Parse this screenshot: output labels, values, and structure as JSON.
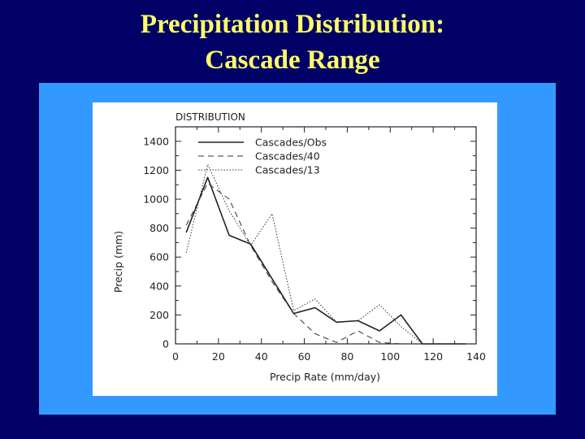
{
  "slide": {
    "title_line1": "Precipitation Distribution:",
    "title_line2": "Cascade Range"
  },
  "colors": {
    "background": "#000066",
    "title": "#ffff66",
    "panel": "#3399ff",
    "card": "#ffffff",
    "ink": "#222222"
  },
  "chart_data": {
    "type": "line",
    "title": "DISTRIBUTION",
    "xlabel": "Precip Rate (mm/day)",
    "ylabel": "Precip (mm)",
    "xlim": [
      0,
      140
    ],
    "ylim": [
      0,
      1500
    ],
    "xticks": [
      0,
      20,
      40,
      60,
      80,
      100,
      120,
      140
    ],
    "yticks": [
      0,
      200,
      400,
      600,
      800,
      1000,
      1200,
      1400
    ],
    "legend_position": "top-left",
    "series": [
      {
        "name": "Cascades/Obs",
        "style": "solid",
        "x": [
          5,
          15,
          25,
          35,
          45,
          55,
          65,
          75,
          85,
          95,
          105,
          115,
          125,
          135
        ],
        "y": [
          770,
          1150,
          750,
          690,
          450,
          210,
          250,
          150,
          160,
          90,
          200,
          0,
          0,
          0
        ]
      },
      {
        "name": "Cascades/40",
        "style": "dashed",
        "x": [
          5,
          15,
          25,
          35,
          45,
          55,
          65,
          75,
          85,
          95,
          105
        ],
        "y": [
          820,
          1110,
          1000,
          680,
          430,
          210,
          70,
          10,
          90,
          10,
          0
        ]
      },
      {
        "name": "Cascades/13",
        "style": "dotted",
        "x": [
          5,
          15,
          25,
          35,
          45,
          55,
          65,
          75,
          85,
          95,
          105,
          115,
          125,
          135
        ],
        "y": [
          630,
          1240,
          920,
          680,
          900,
          230,
          310,
          150,
          160,
          270,
          120,
          0,
          0,
          0
        ]
      }
    ]
  }
}
